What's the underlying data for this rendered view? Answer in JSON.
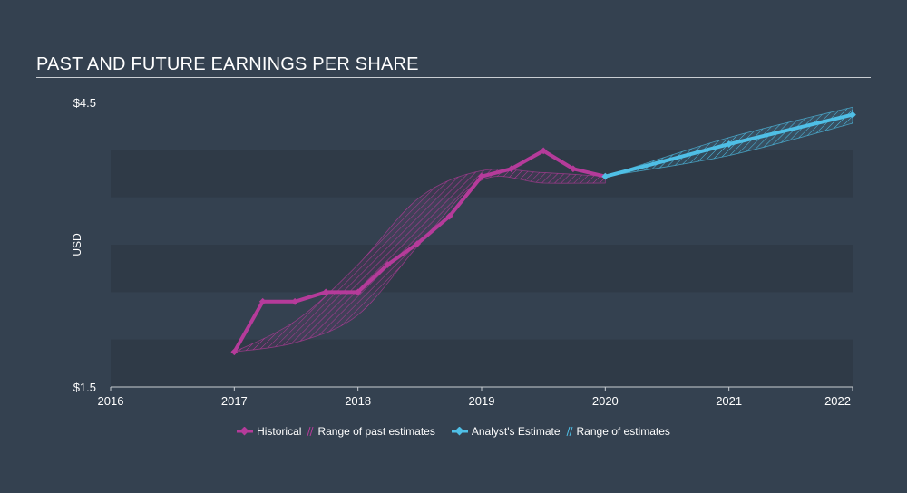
{
  "title": "PAST AND FUTURE EARNINGS PER SHARE",
  "colors": {
    "background": "#344150",
    "band": "#2f3a47",
    "historical": "#b53b9a",
    "estimate": "#4fbfe6"
  },
  "chart_data": {
    "type": "line",
    "title": "PAST AND FUTURE EARNINGS PER SHARE",
    "ylabel": "USD",
    "ylim": [
      1.5,
      4.5
    ],
    "xlim": [
      2016,
      2022
    ],
    "y_tick_labels": [
      "$4.5",
      "$1.5"
    ],
    "x_tick_labels": [
      "2016",
      "2017",
      "2018",
      "2019",
      "2020",
      "2021",
      "2022"
    ],
    "series": [
      {
        "name": "Historical",
        "x": [
          2017.0,
          2017.23,
          2017.49,
          2017.74,
          2018.0,
          2018.24,
          2018.48,
          2018.74,
          2019.0,
          2019.24,
          2019.5,
          2019.74,
          2020.0
        ],
        "y": [
          1.87,
          2.4,
          2.4,
          2.5,
          2.5,
          2.79,
          3.01,
          3.3,
          3.72,
          3.8,
          3.99,
          3.8,
          3.72
        ]
      },
      {
        "name": "Analyst's Estimate",
        "x": [
          2020.0,
          2021.0,
          2022.0
        ],
        "y": [
          3.72,
          4.06,
          4.37
        ]
      }
    ],
    "bands": [
      {
        "name": "Range of past estimates",
        "x": [
          2017.0,
          2017.5,
          2018.0,
          2018.5,
          2019.0,
          2019.5,
          2020.0
        ],
        "upper": [
          1.87,
          2.2,
          2.79,
          3.5,
          3.78,
          3.76,
          3.72
        ],
        "lower": [
          1.87,
          1.97,
          2.26,
          3.01,
          3.68,
          3.65,
          3.65
        ]
      },
      {
        "name": "Range of estimates",
        "x": [
          2020.0,
          2021.0,
          2022.0
        ],
        "upper": [
          3.72,
          4.13,
          4.45
        ],
        "lower": [
          3.72,
          3.94,
          4.28
        ]
      }
    ],
    "legend": {
      "position": "bottom",
      "items": [
        "Historical",
        "Range of past estimates",
        "Analyst's Estimate",
        "Range of estimates"
      ]
    },
    "grid": "horizontal bands"
  }
}
